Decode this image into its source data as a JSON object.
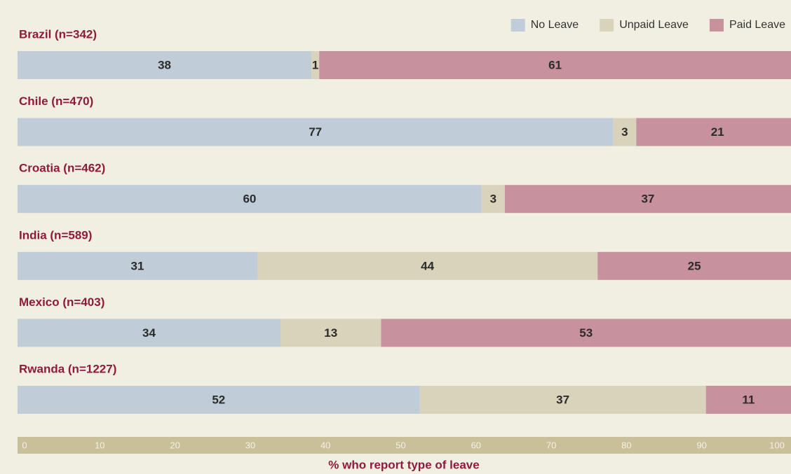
{
  "chart_data": {
    "type": "bar",
    "orientation": "horizontal",
    "stacked": true,
    "xlabel": "% who report type of leave",
    "categories": [
      "Brazil (n=342)",
      "Chile (n=470)",
      "Croatia (n=462)",
      "India  (n=589)",
      "Mexico (n=403)",
      "Rwanda (n=1227)"
    ],
    "series": [
      {
        "name": "No Leave",
        "color": "#c0ccd8",
        "values": [
          38,
          77,
          60,
          31,
          34,
          52
        ]
      },
      {
        "name": "Unpaid Leave",
        "color": "#d9d3bb",
        "values": [
          1,
          3,
          3,
          44,
          13,
          37
        ]
      },
      {
        "name": "Paid Leave",
        "color": "#c8919e",
        "values": [
          61,
          21,
          37,
          25,
          53,
          11
        ]
      }
    ],
    "xlim": [
      0,
      100
    ],
    "xticks": [
      0,
      10,
      20,
      30,
      40,
      50,
      60,
      70,
      80,
      90,
      100
    ],
    "legend": "top-right"
  }
}
